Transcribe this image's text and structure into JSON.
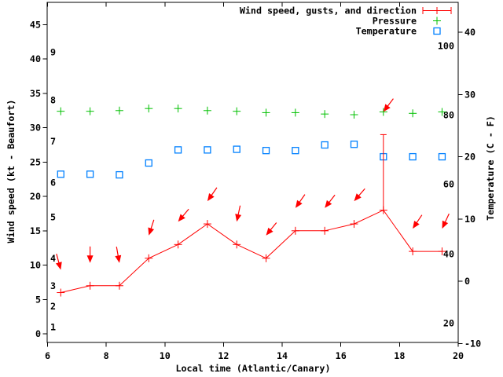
{
  "colors": {
    "wind": "#ff0000",
    "pressure": "#00c000",
    "temperature": "#0080ff",
    "axis": "#000000",
    "text": "#000000",
    "background": "#ffffff"
  },
  "x_axis": {
    "label": "Local time (Atlantic/Canary)",
    "tick_labels": [
      "6",
      "8",
      "10",
      "12",
      "14",
      "16",
      "18",
      "20"
    ],
    "tick_values": [
      6,
      8,
      10,
      12,
      14,
      16,
      18,
      20
    ]
  },
  "y_left_axis": {
    "label": "Wind speed (kt - Beaufort)",
    "tick_labels": [
      "0",
      "5",
      "10",
      "15",
      "20",
      "25",
      "30",
      "35",
      "40",
      "45"
    ],
    "tick_values": [
      0,
      5,
      10,
      15,
      20,
      25,
      30,
      35,
      40,
      45
    ],
    "beaufort_inner_labels": [
      {
        "label": "1",
        "kt": 1
      },
      {
        "label": "2",
        "kt": 4
      },
      {
        "label": "3",
        "kt": 7
      },
      {
        "label": "4",
        "kt": 11
      },
      {
        "label": "5",
        "kt": 17
      },
      {
        "label": "6",
        "kt": 22
      },
      {
        "label": "7",
        "kt": 28
      },
      {
        "label": "8",
        "kt": 34
      },
      {
        "label": "9",
        "kt": 41
      }
    ]
  },
  "y_right_axis": {
    "label": "Temperature (C - F)",
    "tick_labels": [
      "-10",
      "0",
      "10",
      "20",
      "30",
      "40"
    ],
    "tick_values": [
      -10,
      0,
      10,
      20,
      30,
      40
    ],
    "fahrenheit_inner_labels": [
      {
        "label": "20",
        "c": -6.7
      },
      {
        "label": "40",
        "c": 4.4
      },
      {
        "label": "60",
        "c": 15.6
      },
      {
        "label": "80",
        "c": 26.7
      },
      {
        "label": "100",
        "c": 37.8
      }
    ]
  },
  "legend": {
    "position": "top-right-inside",
    "entries": [
      {
        "label": "Wind speed, gusts, and direction",
        "marker": "errorbar",
        "color_key": "wind"
      },
      {
        "label": "Pressure",
        "marker": "plus",
        "color_key": "pressure"
      },
      {
        "label": "Temperature",
        "marker": "square",
        "color_key": "temperature"
      }
    ]
  },
  "chart_data": {
    "type": "line",
    "xlabel": "Local time (Atlantic/Canary)",
    "ylabel_left": "Wind speed (kt - Beaufort)",
    "ylabel_right": "Temperature (C - F)",
    "xlim": [
      6,
      20
    ],
    "ylim_left": [
      0,
      45
    ],
    "ylim_right": [
      -10,
      40
    ],
    "grid": false,
    "legend_position": "top-right",
    "x_hours": [
      6.45,
      7.45,
      8.45,
      9.45,
      10.45,
      11.45,
      12.45,
      13.45,
      14.45,
      15.45,
      16.45,
      17.45,
      18.45,
      19.45
    ],
    "series": [
      {
        "name": "Wind speed (kt)",
        "axis": "left",
        "marker": "plus-on-line",
        "values": [
          6,
          7,
          7,
          11,
          13,
          16,
          13,
          11,
          15,
          15,
          16,
          18,
          12,
          12
        ]
      },
      {
        "name": "Wind gust (kt)",
        "axis": "left",
        "marker": "vertical-bar-to-speed",
        "values": [
          6,
          7,
          7,
          11,
          13,
          16,
          13,
          11,
          15,
          15,
          16,
          29,
          12,
          12
        ]
      },
      {
        "name": "Wind direction arrow angle (deg clockwise from pointing straight down)",
        "axis": "none",
        "values": [
          -15,
          0,
          -10,
          18,
          40,
          35,
          12,
          39,
          35,
          38,
          41,
          37,
          34,
          25
        ]
      },
      {
        "name": "Pressure (plotted against left axis, pressure units not labeled)",
        "axis": "left",
        "marker": "plus",
        "values": [
          32.4,
          32.4,
          32.5,
          32.8,
          32.8,
          32.5,
          32.4,
          32.2,
          32.2,
          32.0,
          31.9,
          32.3,
          32.1,
          32.3
        ]
      },
      {
        "name": "Temperature (C)",
        "axis": "right",
        "marker": "open-square",
        "values": [
          17.2,
          17.2,
          17.1,
          19.0,
          21.1,
          21.1,
          21.2,
          21.0,
          21.0,
          21.9,
          22.0,
          20.0,
          20.0,
          20.0
        ]
      }
    ]
  }
}
